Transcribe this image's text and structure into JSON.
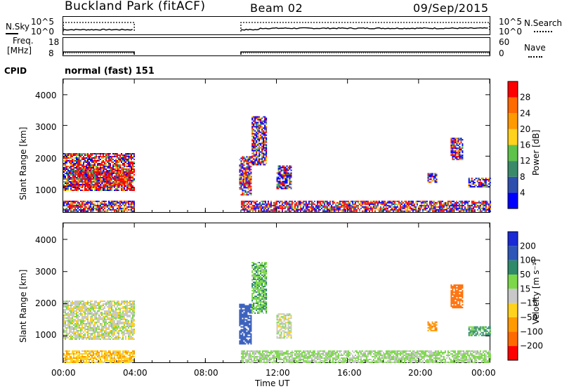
{
  "header": {
    "station": "Buckland Park (fitACF)",
    "beam": "Beam 02",
    "date": "09/Sep/2015"
  },
  "top_panels": {
    "nsky_label": "N.Sky",
    "nsearch_label": "N.Search",
    "freq_label_line1": "Freq.",
    "freq_label_line2": "[MHz]",
    "nave_label": "Nave",
    "cpid_label": "CPID",
    "cpid_value": "normal (fast) 151",
    "noise_ticks_left": [
      "10^5",
      "10^0"
    ],
    "noise_ticks_right": [
      "10^5",
      "10^0"
    ],
    "freq_ticks": [
      "18",
      "8"
    ],
    "nave_ticks": [
      "60",
      "0"
    ]
  },
  "x_axis": {
    "label": "Time UT",
    "ticks": [
      "00:00",
      "04:00",
      "08:00",
      "12:00",
      "16:00",
      "20:00",
      "00:00"
    ]
  },
  "y_axis": {
    "label": "Slant Range [km]",
    "ticks": [
      "1000",
      "2000",
      "3000",
      "4000"
    ]
  },
  "power_colorbar": {
    "label": "Power [dB]",
    "ticks": [
      "4",
      "8",
      "12",
      "16",
      "20",
      "24",
      "28"
    ],
    "colors": [
      "#0000ff",
      "#2f4fae",
      "#3a8a6a",
      "#5fc24a",
      "#ffd21e",
      "#ff9a00",
      "#ff6a00",
      "#ff0000"
    ]
  },
  "velocity_colorbar": {
    "label": "Velocity [m s⁻¹]",
    "ticks": [
      "200",
      "100",
      "50",
      "15",
      "−15",
      "−50",
      "−100",
      "−200"
    ],
    "colors": [
      "#1a2ad6",
      "#2e56b8",
      "#2f8a6a",
      "#7cd84a",
      "#c8c8c8",
      "#ffd21e",
      "#ff9a00",
      "#ff6a00",
      "#ff0000"
    ]
  },
  "chart_data": {
    "type": "heatmap",
    "x_unit": "hours UT",
    "x_range": [
      0,
      24
    ],
    "y_range_km": [
      180,
      4500
    ],
    "power_panel_regions": [
      {
        "t_start": 0.0,
        "t_end": 4.0,
        "range_start_km": 900,
        "range_end_km": 2100,
        "power_db": 22
      },
      {
        "t_start": 0.5,
        "t_end": 3.8,
        "range_start_km": 1050,
        "range_end_km": 1600,
        "power_db": 28
      },
      {
        "t_start": 0.0,
        "t_end": 4.0,
        "range_start_km": 200,
        "range_end_km": 550,
        "power_db": 20
      },
      {
        "t_start": 9.9,
        "t_end": 10.6,
        "range_start_km": 750,
        "range_end_km": 2000,
        "power_db": 18
      },
      {
        "t_start": 10.1,
        "t_end": 10.5,
        "range_start_km": 1050,
        "range_end_km": 1450,
        "power_db": 28
      },
      {
        "t_start": 10.6,
        "t_end": 11.4,
        "range_start_km": 1700,
        "range_end_km": 3300,
        "power_db": 10
      },
      {
        "t_start": 12.0,
        "t_end": 12.8,
        "range_start_km": 950,
        "range_end_km": 1700,
        "power_db": 8
      },
      {
        "t_start": 20.5,
        "t_end": 21.0,
        "range_start_km": 1150,
        "range_end_km": 1450,
        "power_db": 12
      },
      {
        "t_start": 21.8,
        "t_end": 22.5,
        "range_start_km": 1900,
        "range_end_km": 2600,
        "power_db": 16
      },
      {
        "t_start": 22.8,
        "t_end": 24.0,
        "range_start_km": 1000,
        "range_end_km": 1300,
        "power_db": 8
      },
      {
        "t_start": 10.0,
        "t_end": 24.0,
        "range_start_km": 200,
        "range_end_km": 550,
        "power_db": 18
      }
    ],
    "velocity_panel_regions": [
      {
        "t_start": 0.0,
        "t_end": 4.0,
        "range_start_km": 900,
        "range_end_km": 2100,
        "velocity_ms": 0
      },
      {
        "t_start": 0.0,
        "t_end": 4.0,
        "range_start_km": 200,
        "range_end_km": 550,
        "velocity_ms": -40
      },
      {
        "t_start": 9.9,
        "t_end": 10.6,
        "range_start_km": 750,
        "range_end_km": 2000,
        "velocity_ms": 150
      },
      {
        "t_start": 10.6,
        "t_end": 11.4,
        "range_start_km": 1700,
        "range_end_km": 3300,
        "velocity_ms": 40
      },
      {
        "t_start": 12.0,
        "t_end": 12.8,
        "range_start_km": 950,
        "range_end_km": 1700,
        "velocity_ms": 0
      },
      {
        "t_start": 20.5,
        "t_end": 21.0,
        "range_start_km": 1150,
        "range_end_km": 1450,
        "velocity_ms": -80
      },
      {
        "t_start": 21.8,
        "t_end": 22.5,
        "range_start_km": 1900,
        "range_end_km": 2600,
        "velocity_ms": -150
      },
      {
        "t_start": 22.8,
        "t_end": 24.0,
        "range_start_km": 1000,
        "range_end_km": 1300,
        "velocity_ms": 60
      },
      {
        "t_start": 10.0,
        "t_end": 24.0,
        "range_start_km": 200,
        "range_end_km": 550,
        "velocity_ms": 20
      }
    ],
    "data_gap_hours": [
      4.0,
      9.9
    ],
    "grid": false
  }
}
